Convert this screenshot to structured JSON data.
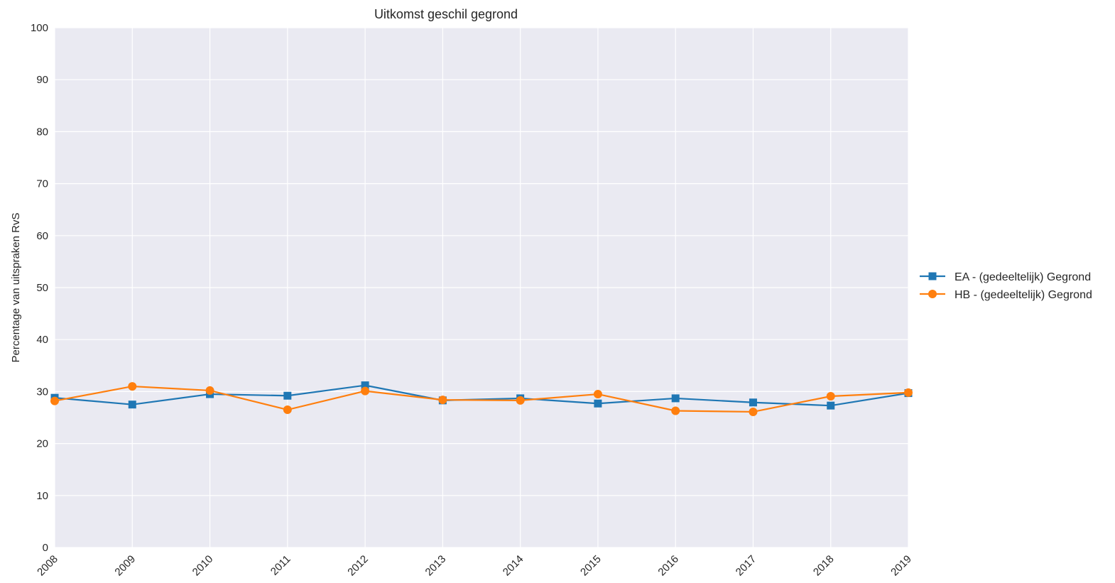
{
  "chart_data": {
    "type": "line",
    "title": "Uitkomst geschil gegrond",
    "xlabel": "",
    "ylabel": "Percentage van uitspraken RvS",
    "x": [
      "2008",
      "2009",
      "2010",
      "2011",
      "2012",
      "2013",
      "2014",
      "2015",
      "2016",
      "2017",
      "2018",
      "2019"
    ],
    "ylim": [
      0,
      100
    ],
    "yticks": [
      0,
      10,
      20,
      30,
      40,
      50,
      60,
      70,
      80,
      90,
      100
    ],
    "grid": true,
    "legend_position": "right",
    "background_color": "#eaeaf2",
    "series": [
      {
        "name": "EA - (gedeeltelijk) Gegrond",
        "marker": "square",
        "color": "#1f77b4",
        "values": [
          28.8,
          27.5,
          29.5,
          29.2,
          31.2,
          28.3,
          28.7,
          27.7,
          28.7,
          27.9,
          27.3,
          29.7
        ]
      },
      {
        "name": "HB - (gedeeltelijk) Gegrond",
        "marker": "circle",
        "color": "#ff7f0e",
        "values": [
          28.2,
          31.0,
          30.2,
          26.5,
          30.1,
          28.4,
          28.3,
          29.5,
          26.3,
          26.1,
          29.1,
          29.8
        ]
      }
    ]
  }
}
